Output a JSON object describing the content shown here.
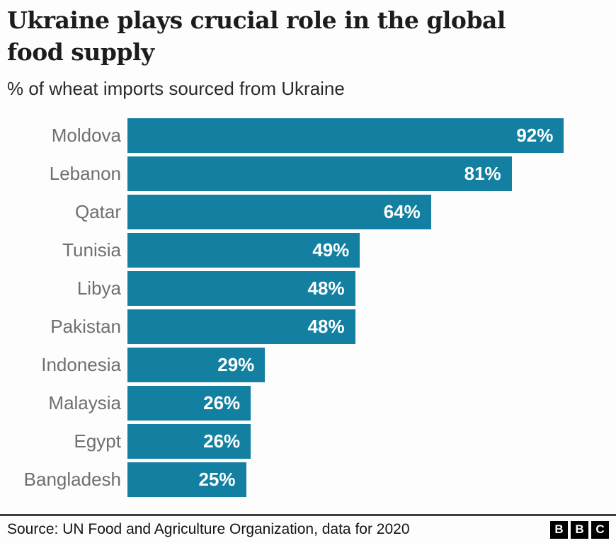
{
  "title": "Ukraine plays crucial role in the global food supply",
  "subtitle": "% of wheat imports sourced from Ukraine",
  "source": "Source: UN Food and Agriculture Organization, data for 2020",
  "logo": {
    "letters": [
      "B",
      "B",
      "C"
    ]
  },
  "colors": {
    "bar": "#1380A1",
    "category_label": "#6f6f6f",
    "value_label": "#ffffff",
    "footer_rule": "#3d3d40"
  },
  "chart_data": {
    "type": "bar",
    "orientation": "horizontal",
    "title": "Ukraine plays crucial role in the global food supply",
    "subtitle": "% of wheat imports sourced from Ukraine",
    "categories": [
      "Moldova",
      "Lebanon",
      "Qatar",
      "Tunisia",
      "Libya",
      "Pakistan",
      "Indonesia",
      "Malaysia",
      "Egypt",
      "Bangladesh"
    ],
    "values": [
      92,
      81,
      64,
      49,
      48,
      48,
      29,
      26,
      26,
      25
    ],
    "value_labels": [
      "92%",
      "81%",
      "64%",
      "49%",
      "48%",
      "48%",
      "29%",
      "26%",
      "26%",
      "25%"
    ],
    "xlabel": "",
    "ylabel": "",
    "xlim": [
      0,
      100
    ],
    "grid": false,
    "legend": false,
    "value_label_position": "inside-end"
  }
}
